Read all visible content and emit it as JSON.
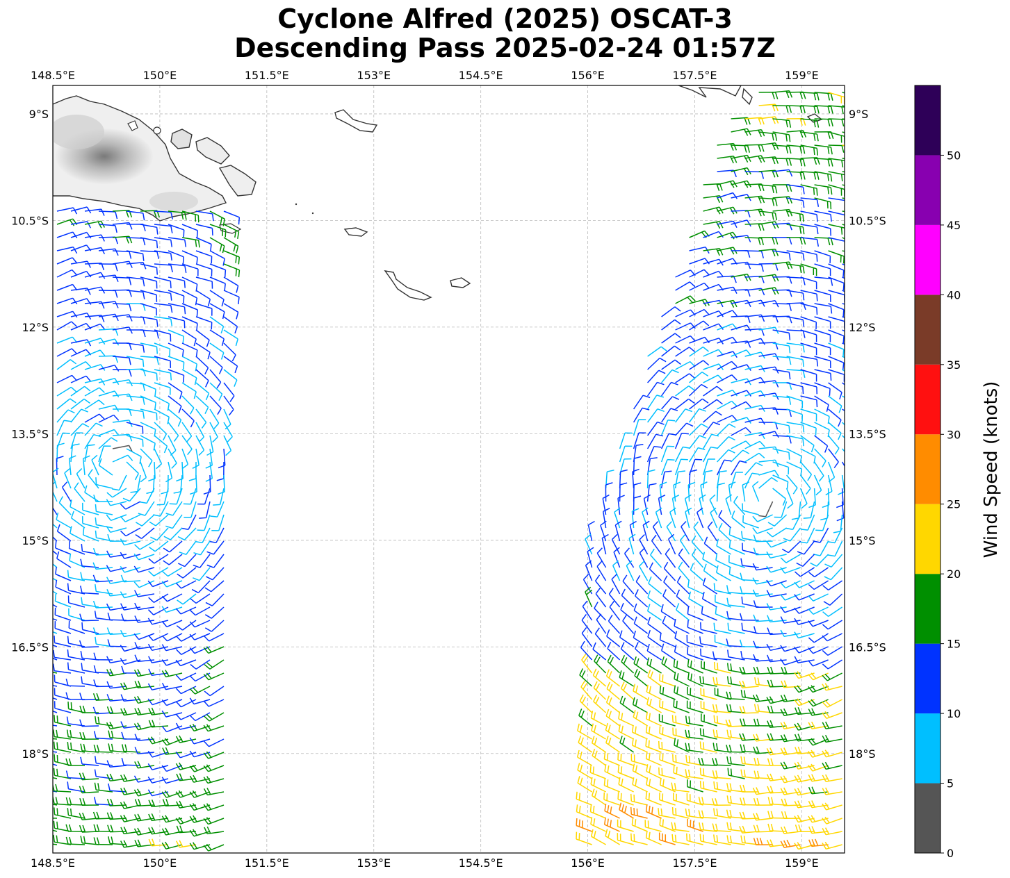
{
  "title_line1": "Cyclone Alfred (2025) OSCAT-3",
  "title_line2": "Descending Pass 2025-02-24 01:57Z",
  "map": {
    "lon_range": [
      148.5,
      159.6
    ],
    "lat_range": [
      -19.4,
      -8.6
    ],
    "gridlines": true,
    "lon_ticks": [
      "148.5°E",
      "150°E",
      "151.5°E",
      "153°E",
      "154.5°E",
      "156°E",
      "157.5°E",
      "159°E"
    ],
    "lon_values": [
      148.5,
      150.0,
      151.5,
      153.0,
      154.5,
      156.0,
      157.5,
      159.0
    ],
    "lat_ticks": [
      "9°S",
      "10.5°S",
      "12°S",
      "13.5°S",
      "15°S",
      "16.5°S",
      "18°S"
    ],
    "lat_values": [
      -9.0,
      -10.5,
      -12.0,
      -13.5,
      -15.0,
      -16.5,
      -18.0
    ]
  },
  "colorbar": {
    "label": "Wind Speed (knots)",
    "bounds": [
      0,
      5,
      10,
      15,
      20,
      25,
      30,
      35,
      40,
      45,
      50,
      55
    ],
    "tick_labels": [
      "0",
      "5",
      "10",
      "15",
      "20",
      "25",
      "30",
      "35",
      "40",
      "45",
      "50"
    ],
    "colors": [
      "#555555",
      "#00bfff",
      "#0033ff",
      "#008f00",
      "#ffd700",
      "#ff8c00",
      "#ff1010",
      "#7a3b28",
      "#ff00ff",
      "#8800b0",
      "#2e0058"
    ]
  },
  "wind_swaths": [
    {
      "name": "western-swath",
      "lon_min": 148.5,
      "lon_max": 150.9,
      "lat_min": -19.4,
      "lat_max": -8.6,
      "center_lon": 149.4,
      "center_lat": -14.0
    },
    {
      "name": "eastern-swath",
      "lon_min": 156.0,
      "lon_max": 159.6,
      "lat_min": -19.4,
      "lat_max": -8.6,
      "center_lon": 158.5,
      "center_lat": -14.4
    }
  ]
}
